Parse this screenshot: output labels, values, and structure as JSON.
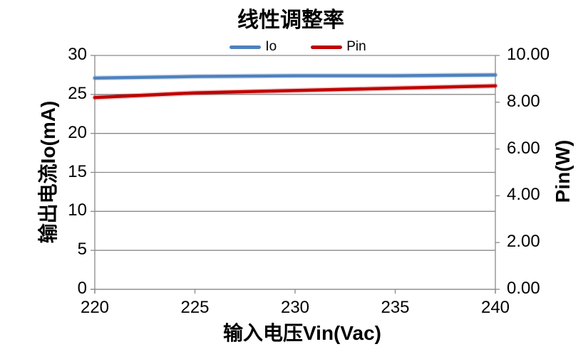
{
  "chart_data": {
    "type": "line",
    "title": "线性调整率",
    "xlabel": "输入电压Vin(Vac)",
    "ylabel_left": "输出电流Io(mA)",
    "ylabel_right": "Pin(W)",
    "x": [
      220,
      225,
      230,
      235,
      240
    ],
    "series": [
      {
        "name": "Io",
        "axis": "left",
        "color": "#4F81BD",
        "values": [
          27.1,
          27.3,
          27.4,
          27.4,
          27.5
        ]
      },
      {
        "name": "Pin",
        "axis": "right",
        "color": "#C00000",
        "values": [
          8.2,
          8.4,
          8.5,
          8.6,
          8.7
        ]
      }
    ],
    "xlim": [
      220,
      240
    ],
    "ylim_left": [
      0,
      30
    ],
    "ylim_right": [
      0,
      10
    ],
    "x_tick_labels": [
      "220",
      "225",
      "230",
      "235",
      "240"
    ],
    "left_tick_labels": [
      "0",
      "5",
      "10",
      "15",
      "20",
      "25",
      "30"
    ],
    "right_tick_labels": [
      "0.00",
      "2.00",
      "4.00",
      "6.00",
      "8.00",
      "10.00"
    ],
    "grid": true,
    "legend_position": "top",
    "legend": [
      {
        "label": "Io",
        "color": "#4F81BD"
      },
      {
        "label": "Pin",
        "color": "#C00000"
      }
    ],
    "colors": {
      "gridline": "#8a8a8a",
      "axis": "#8a8a8a",
      "text": "#000000",
      "background": "#ffffff"
    }
  }
}
